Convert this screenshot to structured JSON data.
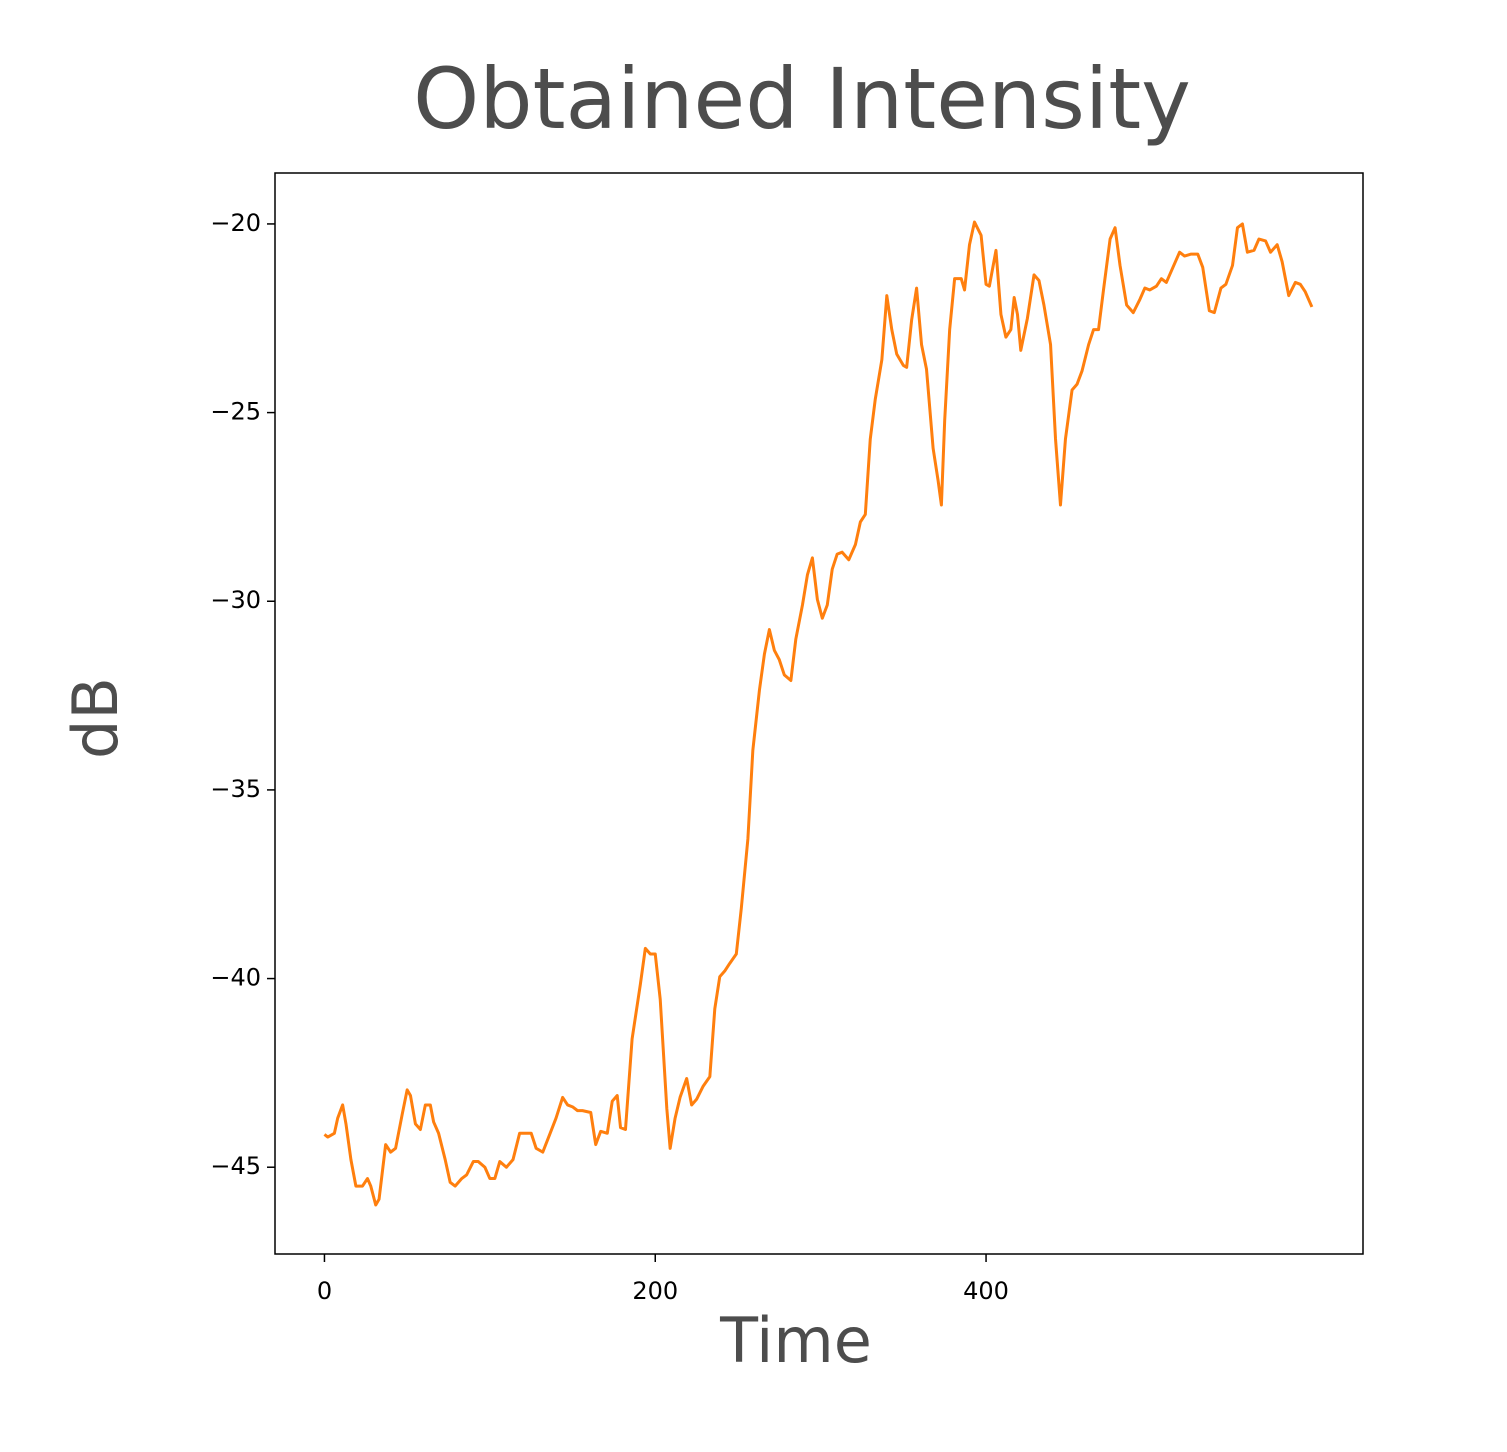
{
  "chart_data": {
    "type": "line",
    "title": "Obtained Intensity",
    "xlabel": "Time",
    "ylabel": "dB",
    "x": [
      0,
      2,
      6,
      8,
      11,
      13,
      16,
      19,
      23,
      26,
      28,
      31,
      33,
      37,
      40,
      43,
      47,
      50,
      52,
      55,
      58,
      61,
      64,
      66,
      69,
      73,
      76,
      79,
      83,
      86,
      90,
      93,
      97,
      100,
      103,
      106,
      110,
      114,
      118,
      122,
      125,
      128,
      132,
      136,
      140,
      144,
      147,
      150,
      153,
      156,
      161,
      164,
      167,
      171,
      174,
      177,
      179,
      182,
      186,
      191,
      194,
      197,
      200,
      203,
      207,
      209,
      212,
      215,
      219,
      222,
      225,
      229,
      233,
      236,
      239,
      242,
      245,
      249,
      252,
      256,
      259,
      263,
      266,
      269,
      272,
      275,
      278,
      282,
      285,
      289,
      292,
      295,
      298,
      301,
      304,
      307,
      310,
      313,
      317,
      321,
      324,
      327,
      330,
      333,
      337,
      340,
      343,
      346,
      350,
      352,
      355,
      358,
      361,
      364,
      368,
      371,
      373,
      375,
      378,
      381,
      385,
      387,
      390,
      393,
      397,
      400,
      402,
      406,
      409,
      412,
      415,
      417,
      419,
      421,
      425,
      429,
      432,
      435,
      439,
      442,
      445,
      448,
      452,
      455,
      458,
      462,
      465,
      468,
      471,
      475,
      478,
      481,
      485,
      489,
      493,
      496,
      499,
      503,
      506,
      509,
      513,
      517,
      520,
      524,
      528,
      531,
      535,
      538,
      542,
      545,
      549,
      552,
      555,
      558,
      562,
      565,
      569,
      572,
      576,
      579,
      583,
      587,
      590,
      593,
      597
    ],
    "values": [
      -44.13,
      -44.2,
      -44.1,
      -43.7,
      -43.35,
      -43.85,
      -44.8,
      -45.5,
      -45.5,
      -45.3,
      -45.5,
      -46.0,
      -45.85,
      -44.4,
      -44.6,
      -44.5,
      -43.6,
      -42.95,
      -43.1,
      -43.85,
      -44.0,
      -43.35,
      -43.35,
      -43.8,
      -44.1,
      -44.8,
      -45.4,
      -45.5,
      -45.3,
      -45.2,
      -44.85,
      -44.85,
      -45.0,
      -45.3,
      -45.3,
      -44.85,
      -45.0,
      -44.8,
      -44.1,
      -44.1,
      -44.1,
      -44.5,
      -44.6,
      -44.15,
      -43.7,
      -43.15,
      -43.35,
      -43.4,
      -43.5,
      -43.5,
      -43.55,
      -44.4,
      -44.05,
      -44.1,
      -43.25,
      -43.1,
      -43.95,
      -44.0,
      -41.6,
      -40.15,
      -39.2,
      -39.35,
      -39.35,
      -40.55,
      -43.45,
      -44.5,
      -43.7,
      -43.15,
      -42.65,
      -43.35,
      -43.2,
      -42.85,
      -42.6,
      -40.8,
      -39.95,
      -39.8,
      -39.6,
      -39.35,
      -38.15,
      -36.3,
      -33.95,
      -32.35,
      -31.4,
      -30.75,
      -31.3,
      -31.55,
      -31.95,
      -32.1,
      -31.0,
      -30.1,
      -29.3,
      -28.85,
      -29.95,
      -30.45,
      -30.1,
      -29.15,
      -28.75,
      -28.7,
      -28.9,
      -28.5,
      -27.9,
      -27.7,
      -25.7,
      -24.65,
      -23.6,
      -21.9,
      -22.8,
      -23.45,
      -23.75,
      -23.8,
      -22.55,
      -21.7,
      -23.2,
      -23.85,
      -25.95,
      -26.8,
      -27.45,
      -25.2,
      -22.8,
      -21.45,
      -21.45,
      -21.75,
      -20.55,
      -19.95,
      -20.3,
      -21.6,
      -21.65,
      -20.7,
      -22.4,
      -23.0,
      -22.8,
      -21.95,
      -22.4,
      -23.35,
      -22.5,
      -21.35,
      -21.5,
      -22.15,
      -23.2,
      -25.7,
      -27.45,
      -25.7,
      -24.4,
      -24.25,
      -23.9,
      -23.2,
      -22.8,
      -22.8,
      -21.75,
      -20.4,
      -20.1,
      -21.1,
      -22.15,
      -22.35,
      -22.0,
      -21.7,
      -21.75,
      -21.65,
      -21.45,
      -21.55,
      -21.15,
      -20.75,
      -20.85,
      -20.8,
      -20.8,
      -21.15,
      -22.3,
      -22.35,
      -21.7,
      -21.6,
      -21.1,
      -20.1,
      -20.0,
      -20.75,
      -20.7,
      -20.4,
      -20.45,
      -20.75,
      -20.55,
      -21.0,
      -21.9,
      -21.55,
      -21.6,
      -21.8,
      -22.2
    ],
    "color": "#ff7f0e",
    "xlim": [
      -29.9,
      627.9
    ],
    "xticks": [
      0,
      200,
      400
    ],
    "ylim": [
      -47.3,
      -18.65
    ],
    "yticks": [
      {
        "value": -20,
        "label": "−20"
      },
      {
        "value": -25,
        "label": "−25"
      },
      {
        "value": -30,
        "label": "−30"
      },
      {
        "value": -35,
        "label": "−35"
      },
      {
        "value": -40,
        "label": "−40"
      },
      {
        "value": -45,
        "label": "−45"
      }
    ]
  }
}
